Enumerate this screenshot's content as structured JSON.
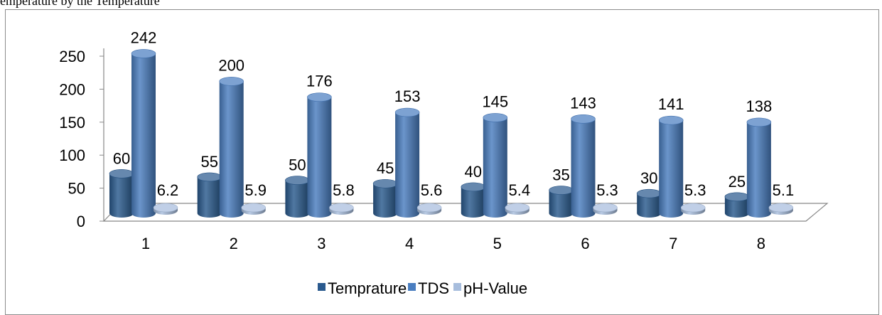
{
  "top_text": "emperature by the Temperature",
  "colors": {
    "Temprature": "#2a5a8e",
    "TDS": "#4a7ec0",
    "pH-Value": "#a7bddd",
    "floor_stroke": "#888888"
  },
  "chart_data": {
    "type": "bar",
    "categories": [
      "1",
      "2",
      "3",
      "4",
      "5",
      "6",
      "7",
      "8"
    ],
    "series": [
      {
        "name": "Temprature",
        "values": [
          60,
          55,
          50,
          45,
          40,
          35,
          30,
          25
        ],
        "labels": [
          "60",
          "55",
          "50",
          "45",
          "40",
          "35",
          "30",
          "25"
        ]
      },
      {
        "name": "TDS",
        "values": [
          242,
          200,
          176,
          153,
          145,
          143,
          141,
          138
        ],
        "labels": [
          "242",
          "200",
          "176",
          "153",
          "145",
          "143",
          "141",
          "138"
        ]
      },
      {
        "name": "pH-Value",
        "values": [
          6.2,
          5.9,
          5.8,
          5.6,
          5.4,
          5.3,
          5.3,
          5.1
        ],
        "labels": [
          "6.2",
          "5.9",
          "5.8",
          "5.6",
          "5.4",
          "5.3",
          "5.3",
          "5.1"
        ]
      }
    ],
    "yticks": [
      "0",
      "50",
      "100",
      "150",
      "200",
      "250"
    ],
    "ylim": [
      0,
      250
    ],
    "style": "3d-cylinder",
    "legend_position": "bottom"
  }
}
